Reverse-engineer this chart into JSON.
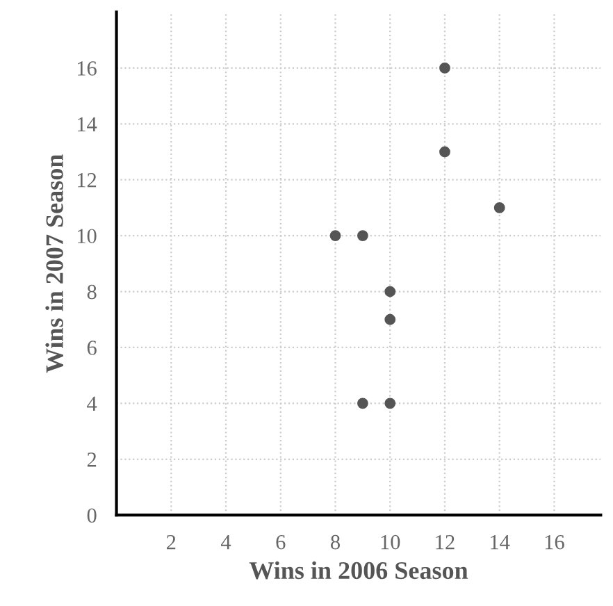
{
  "chart_data": {
    "type": "scatter",
    "xlabel": "Wins in 2006 Season",
    "ylabel": "Wins in 2007 Season",
    "x": [
      12,
      12,
      14,
      8,
      9,
      10,
      10,
      9,
      10
    ],
    "values": [
      16,
      13,
      11,
      10,
      10,
      8,
      7,
      4,
      4
    ],
    "color": "#555555",
    "marker": "circle",
    "xlim": [
      0,
      17.7
    ],
    "ylim": [
      0,
      18
    ],
    "xticks": [
      2,
      4,
      6,
      8,
      10,
      12,
      14,
      16
    ],
    "yticks": [
      0,
      2,
      4,
      6,
      8,
      10,
      12,
      14,
      16
    ],
    "grid": true
  }
}
